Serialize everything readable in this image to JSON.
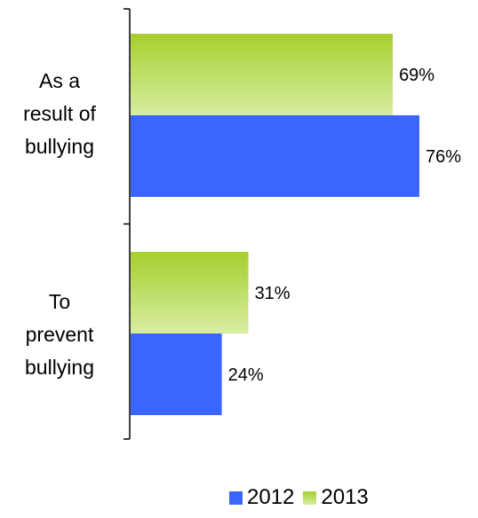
{
  "chart_data": {
    "type": "bar",
    "orientation": "horizontal",
    "categories": [
      "As a\nresult of\nbullying",
      "To\nprevent\nbullying"
    ],
    "series": [
      {
        "name": "2013",
        "values": [
          69,
          31
        ],
        "labels": [
          "69%",
          "31%"
        ],
        "color": "#a6cf2e",
        "color_light": "#d7eda1"
      },
      {
        "name": "2012",
        "values": [
          76,
          24
        ],
        "labels": [
          "76%",
          "24%"
        ],
        "color": "#3a66ff"
      }
    ],
    "legend": {
      "placement": "bottom",
      "entries": [
        {
          "name": "2012",
          "color": "#3a66ff"
        },
        {
          "name": "2013",
          "color": "#a6cf2e"
        }
      ]
    },
    "xlim": [
      0,
      100
    ],
    "grid": false,
    "title": "",
    "xlabel": "",
    "ylabel": ""
  }
}
